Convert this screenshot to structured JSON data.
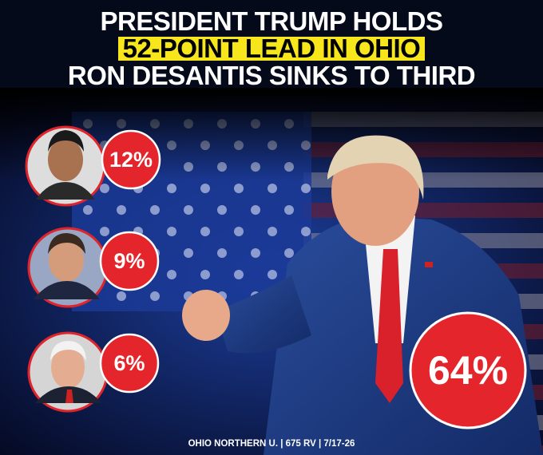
{
  "headline": {
    "line1": "PRESIDENT TRUMP HOLDS",
    "line2": "52-POINT LEAD IN OHIO",
    "line3": "RON DESANTIS SINKS TO THIRD"
  },
  "candidates": [
    {
      "share": "12%"
    },
    {
      "share": "9%"
    },
    {
      "share": "6%"
    }
  ],
  "leader": {
    "share": "64%"
  },
  "footer": "OHIO NORTHERN U. | 675 RV | 7/17-26"
}
